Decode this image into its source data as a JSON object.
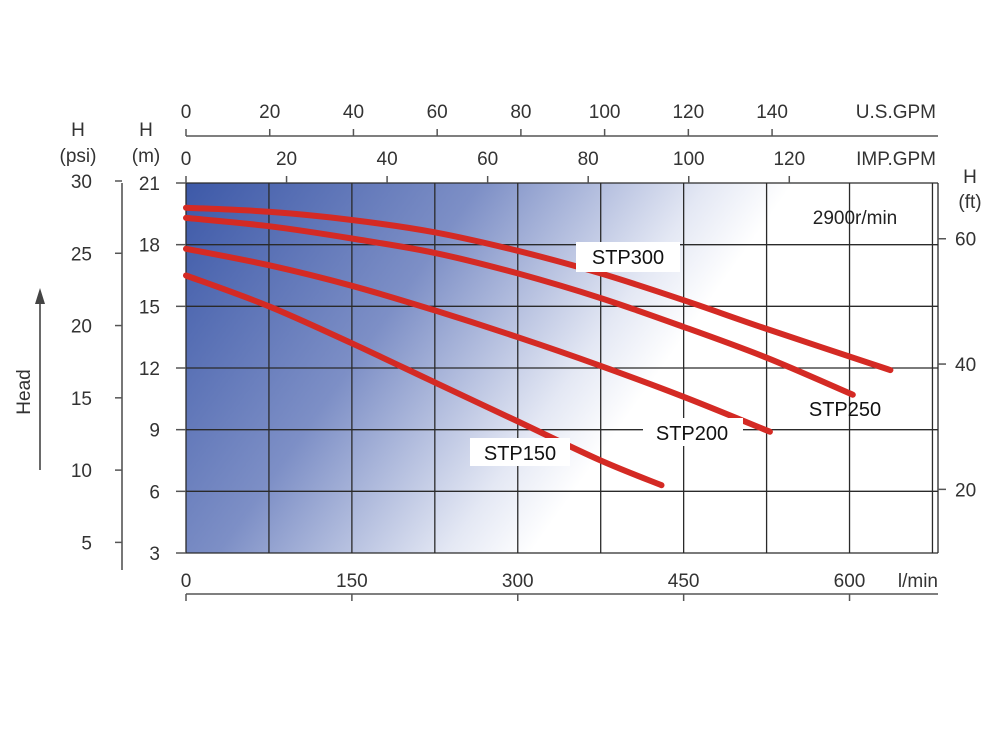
{
  "chart_data": {
    "type": "line",
    "speed_label": "2900r/min",
    "color_curve": "#d42a24",
    "color_gradient_start": "#3d59a8",
    "x_axis": {
      "unit": "l/min",
      "ticks": [
        0,
        150,
        300,
        450,
        600
      ],
      "lim": [
        0,
        680
      ]
    },
    "x_axis_top_us": {
      "unit": "U.S.GPM",
      "ticks": [
        0,
        20,
        40,
        60,
        80,
        100,
        120,
        140
      ]
    },
    "x_axis_top_imp": {
      "unit": "IMP.GPM",
      "ticks": [
        0,
        20,
        40,
        60,
        80,
        100,
        120
      ]
    },
    "y_axis_m": {
      "label": "H",
      "unit": "(m)",
      "ticks": [
        3,
        6,
        9,
        12,
        15,
        18,
        21
      ],
      "lim": [
        3,
        21
      ]
    },
    "y_axis_psi": {
      "label": "H",
      "unit": "(psi)",
      "ticks": [
        5,
        10,
        15,
        20,
        25,
        30
      ]
    },
    "y_axis_ft": {
      "label": "H",
      "unit": "(ft)",
      "ticks": [
        20,
        40,
        60
      ]
    },
    "head_label": "Head",
    "series": [
      {
        "name": "STP300",
        "x": [
          0,
          75,
          150,
          225,
          300,
          375,
          450,
          525,
          637
        ],
        "y": [
          19.8,
          19.6,
          19.2,
          18.6,
          17.7,
          16.6,
          15.3,
          13.9,
          11.9
        ]
      },
      {
        "name": "STP250",
        "x": [
          0,
          75,
          150,
          225,
          300,
          375,
          450,
          525,
          603
        ],
        "y": [
          19.3,
          18.9,
          18.3,
          17.6,
          16.6,
          15.4,
          14.0,
          12.5,
          10.7
        ]
      },
      {
        "name": "STP200",
        "x": [
          0,
          75,
          150,
          225,
          300,
          375,
          450,
          528
        ],
        "y": [
          17.8,
          17.0,
          16.0,
          14.8,
          13.5,
          12.1,
          10.6,
          8.9
        ]
      },
      {
        "name": "STP150",
        "x": [
          0,
          75,
          150,
          225,
          300,
          375,
          430
        ],
        "y": [
          16.5,
          15.0,
          13.2,
          11.3,
          9.4,
          7.5,
          6.3
        ]
      }
    ]
  }
}
